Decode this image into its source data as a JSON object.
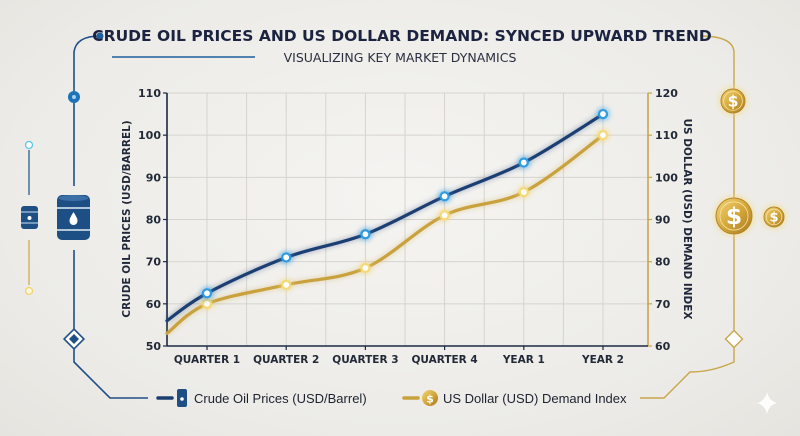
{
  "header": {
    "title": "CRUDE OIL PRICES AND US DOLLAR DEMAND: SYNCED UPWARD TREND",
    "subtitle": "VISUALIZING KEY MARKET DYNAMICS"
  },
  "chart_data": {
    "type": "line",
    "title": "CRUDE OIL PRICES AND US DOLLAR DEMAND: SYNCED UPWARD TREND",
    "subtitle": "VISUALIZING KEY MARKET DYNAMICS",
    "categories": [
      "QUARTER 1",
      "QUARTER 2",
      "QUARTER 3",
      "QUARTER 4",
      "YEAR 1",
      "YEAR 2"
    ],
    "ylabel_left": "CRUDE OIL PRICES (USD/BARREL)",
    "ylabel_right": "US DOLLAR (USD) DEMAND INDEX",
    "ylim_left": [
      50,
      110
    ],
    "ylim_right": [
      60,
      120
    ],
    "yticks_left": [
      "50",
      "60",
      "70",
      "80",
      "90",
      "100",
      "110"
    ],
    "yticks_right": [
      "60",
      "70",
      "80",
      "90",
      "100",
      "110",
      "120"
    ],
    "grid": true,
    "legend_position": "bottom",
    "series": [
      {
        "name": "Crude Oil Prices (USD/Barrel)",
        "axis": "left",
        "color": "#1c3f73",
        "marker_color": "#2f9be0",
        "start_value": 56,
        "values": [
          62.5,
          71,
          76.5,
          85.5,
          93.5,
          105
        ]
      },
      {
        "name": "US Dollar (USD) Demand Index",
        "axis": "right",
        "color": "#c9a23e",
        "marker_color": "#f5d978",
        "start_value": 63,
        "values": [
          70,
          74.5,
          78.5,
          91,
          96.5,
          110
        ]
      }
    ]
  },
  "legend": {
    "oil_label": "Crude Oil Prices (USD/Barrel)",
    "usd_label": "US Dollar (USD) Demand Index"
  },
  "icons": {
    "dollar_symbol": "$"
  }
}
